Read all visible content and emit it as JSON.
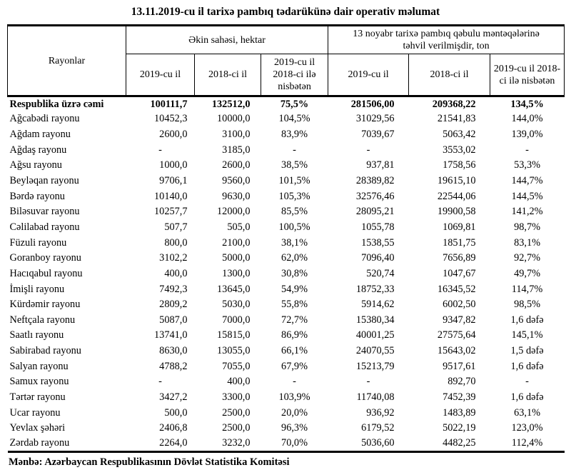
{
  "title": "13.11.2019-cu il tarixə pambıq tədarükünə dair operativ məlumat",
  "table": {
    "col_region_header": "Rayonlar",
    "group1_title": "Əkin sahəsi, hektar",
    "group2_line1": "13 noyabr tarixə pambıq qəbulu məntəqələrinə",
    "group2_line2": "təhvil verilmişdir, ton",
    "subheaders": [
      "2019-cu il",
      "2018-ci il",
      "2019-cu il 2018-ci ilə nisbətən",
      "2019-cu il",
      "2018-ci il",
      "2019-cu il 2018-ci ilə nisbətən"
    ],
    "rows": [
      {
        "name": "Respublika üzrə cəmi",
        "bold": true,
        "cells": [
          "100111,7",
          "132512,0",
          "75,5%",
          "281506,00",
          "209368,22",
          "134,5%"
        ]
      },
      {
        "name": "Ağcabədi rayonu",
        "cells": [
          "10452,3",
          "10000,0",
          "104,5%",
          "31029,56",
          "21541,83",
          "144,0%"
        ]
      },
      {
        "name": "Ağdam rayonu",
        "cells": [
          "2600,0",
          "3100,0",
          "83,9%",
          "7039,67",
          "5063,42",
          "139,0%"
        ]
      },
      {
        "name": "Ağdaş rayonu",
        "cells": [
          "-",
          "3185,0",
          "-",
          "-",
          "3553,02",
          "-"
        ]
      },
      {
        "name": "Ağsu rayonu",
        "cells": [
          "1000,0",
          "2600,0",
          "38,5%",
          "937,81",
          "1758,56",
          "53,3%"
        ]
      },
      {
        "name": "Beyləqan rayonu",
        "cells": [
          "9706,1",
          "9560,0",
          "101,5%",
          "28389,82",
          "19615,10",
          "144,7%"
        ]
      },
      {
        "name": "Bərdə rayonu",
        "cells": [
          "10140,0",
          "9630,0",
          "105,3%",
          "32576,46",
          "22544,06",
          "144,5%"
        ]
      },
      {
        "name": "Biləsuvar rayonu",
        "cells": [
          "10257,7",
          "12000,0",
          "85,5%",
          "28095,21",
          "19900,58",
          "141,2%"
        ]
      },
      {
        "name": "Cəlilabad rayonu",
        "cells": [
          "507,7",
          "505,0",
          "100,5%",
          "1055,78",
          "1069,81",
          "98,7%"
        ]
      },
      {
        "name": "Füzuli rayonu",
        "cells": [
          "800,0",
          "2100,0",
          "38,1%",
          "1538,55",
          "1851,75",
          "83,1%"
        ]
      },
      {
        "name": "Goranboy rayonu",
        "cells": [
          "3102,2",
          "5000,0",
          "62,0%",
          "7096,40",
          "7656,89",
          "92,7%"
        ]
      },
      {
        "name": "Hacıqabul rayonu",
        "cells": [
          "400,0",
          "1300,0",
          "30,8%",
          "520,74",
          "1047,67",
          "49,7%"
        ]
      },
      {
        "name": "İmişli rayonu",
        "cells": [
          "7492,3",
          "13645,0",
          "54,9%",
          "18752,33",
          "16345,52",
          "114,7%"
        ]
      },
      {
        "name": "Kürdəmir rayonu",
        "cells": [
          "2809,2",
          "5030,0",
          "55,8%",
          "5914,62",
          "6002,50",
          "98,5%"
        ]
      },
      {
        "name": "Neftçala rayonu",
        "cells": [
          "5087,0",
          "7000,0",
          "72,7%",
          "15380,34",
          "9347,82",
          "1,6 dəfə"
        ]
      },
      {
        "name": "Saatlı rayonu",
        "cells": [
          "13741,0",
          "15815,0",
          "86,9%",
          "40001,25",
          "27575,64",
          "145,1%"
        ]
      },
      {
        "name": "Sabirabad rayonu",
        "cells": [
          "8630,0",
          "13055,0",
          "66,1%",
          "24070,55",
          "15643,02",
          "1,5 dəfə"
        ]
      },
      {
        "name": "Salyan rayonu",
        "cells": [
          "4788,2",
          "7055,0",
          "67,9%",
          "15213,79",
          "9517,61",
          "1,6 dəfə"
        ]
      },
      {
        "name": "Samux rayonu",
        "cells": [
          "-",
          "400,0",
          "-",
          "-",
          "892,70",
          "-"
        ]
      },
      {
        "name": "Tərtər rayonu",
        "cells": [
          "3427,2",
          "3300,0",
          "103,9%",
          "11740,08",
          "7452,39",
          "1,6 dəfə"
        ]
      },
      {
        "name": "Ucar rayonu",
        "cells": [
          "500,0",
          "2500,0",
          "20,0%",
          "936,92",
          "1483,89",
          "63,1%"
        ]
      },
      {
        "name": "Yevlax şəhəri",
        "cells": [
          "2406,8",
          "2500,0",
          "96,3%",
          "6179,52",
          "5022,19",
          "123,0%"
        ]
      },
      {
        "name": "Zərdab rayonu",
        "cells": [
          "2264,0",
          "3232,0",
          "70,0%",
          "5036,60",
          "4482,25",
          "112,4%"
        ]
      }
    ]
  },
  "footer": "Mənbə: Azərbaycan Respublikasının Dövlət Statistika Komitəsi"
}
